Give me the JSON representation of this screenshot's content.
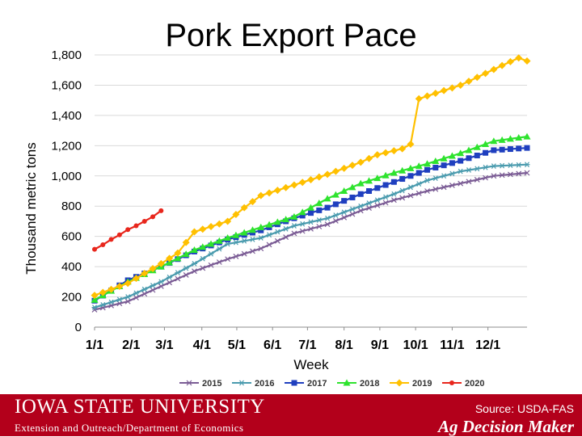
{
  "slide": {
    "title": "Pork Export Pace",
    "footer": {
      "brand": "IOWA STATE UNIVERSITY",
      "department": "Extension and Outreach/Department of Economics",
      "source": "Source: USDA-FAS",
      "ag_decision_maker": "Ag Decision Maker",
      "background_color": "#b3001b"
    }
  },
  "chart_data": {
    "type": "line",
    "title": "Pork Export Pace",
    "xlabel": "Week",
    "ylabel": "Thousand metric tons",
    "ylim": [
      0,
      1800
    ],
    "yticks": [
      0,
      200,
      400,
      600,
      800,
      1000,
      1200,
      1400,
      1600,
      1800
    ],
    "ytick_labels": [
      "0",
      "200",
      "400",
      "600",
      "800",
      "1,000",
      "1,200",
      "1,400",
      "1,600",
      "1,800"
    ],
    "xlim": [
      1,
      53
    ],
    "xticks": [
      1,
      5.4,
      9.4,
      13.9,
      18.1,
      22.4,
      26.6,
      31.0,
      35.3,
      39.6,
      44.0,
      48.3
    ],
    "xtick_labels": [
      "1/1",
      "2/1",
      "3/1",
      "4/1",
      "5/1",
      "6/1",
      "7/1",
      "8/1",
      "9/1",
      "10/1",
      "11/1",
      "12/1"
    ],
    "grid": "horizontal",
    "legend_position": "bottom",
    "series": [
      {
        "name": "2015",
        "color": "#7b5c95",
        "marker": "cross",
        "anchors": [
          [
            1,
            115
          ],
          [
            5,
            170
          ],
          [
            9,
            270
          ],
          [
            13,
            370
          ],
          [
            17,
            450
          ],
          [
            21,
            520
          ],
          [
            25,
            620
          ],
          [
            29,
            680
          ],
          [
            33,
            770
          ],
          [
            37,
            840
          ],
          [
            41,
            900
          ],
          [
            45,
            950
          ],
          [
            49,
            1000
          ],
          [
            53,
            1020
          ]
        ]
      },
      {
        "name": "2016",
        "color": "#4a9bae",
        "marker": "asterisk",
        "anchors": [
          [
            1,
            130
          ],
          [
            5,
            200
          ],
          [
            9,
            300
          ],
          [
            13,
            420
          ],
          [
            17,
            550
          ],
          [
            21,
            590
          ],
          [
            25,
            670
          ],
          [
            29,
            720
          ],
          [
            33,
            800
          ],
          [
            37,
            880
          ],
          [
            41,
            970
          ],
          [
            45,
            1030
          ],
          [
            49,
            1065
          ],
          [
            53,
            1075
          ]
        ]
      },
      {
        "name": "2017",
        "color": "#1f3fbf",
        "marker": "square",
        "anchors": [
          [
            1,
            175
          ],
          [
            5,
            310
          ],
          [
            9,
            400
          ],
          [
            13,
            500
          ],
          [
            17,
            580
          ],
          [
            21,
            640
          ],
          [
            25,
            720
          ],
          [
            29,
            790
          ],
          [
            33,
            880
          ],
          [
            37,
            960
          ],
          [
            41,
            1040
          ],
          [
            45,
            1100
          ],
          [
            49,
            1170
          ],
          [
            53,
            1185
          ]
        ]
      },
      {
        "name": "2018",
        "color": "#2ee32e",
        "marker": "triangle",
        "anchors": [
          [
            1,
            180
          ],
          [
            5,
            300
          ],
          [
            9,
            400
          ],
          [
            13,
            510
          ],
          [
            17,
            590
          ],
          [
            21,
            660
          ],
          [
            25,
            730
          ],
          [
            29,
            850
          ],
          [
            33,
            950
          ],
          [
            37,
            1020
          ],
          [
            41,
            1080
          ],
          [
            45,
            1150
          ],
          [
            49,
            1230
          ],
          [
            53,
            1260
          ]
        ]
      },
      {
        "name": "2019",
        "color": "#ffc000",
        "marker": "diamond",
        "anchors": [
          [
            1,
            210
          ],
          [
            5,
            290
          ],
          [
            9,
            420
          ],
          [
            11,
            490
          ],
          [
            12,
            560
          ],
          [
            13,
            630
          ],
          [
            17,
            700
          ],
          [
            19,
            790
          ],
          [
            21,
            870
          ],
          [
            25,
            940
          ],
          [
            29,
            1010
          ],
          [
            33,
            1090
          ],
          [
            35,
            1140
          ],
          [
            38,
            1180
          ],
          [
            39,
            1210
          ],
          [
            40,
            1510
          ],
          [
            45,
            1600
          ],
          [
            50,
            1730
          ],
          [
            52,
            1780
          ],
          [
            53,
            1760
          ]
        ]
      },
      {
        "name": "2020",
        "color": "#e8261c",
        "marker": "circle",
        "anchors": [
          [
            1,
            515
          ],
          [
            2,
            545
          ],
          [
            3,
            580
          ],
          [
            4,
            610
          ],
          [
            5,
            645
          ],
          [
            6,
            670
          ],
          [
            7,
            700
          ],
          [
            8,
            730
          ],
          [
            9,
            770
          ]
        ]
      }
    ]
  }
}
